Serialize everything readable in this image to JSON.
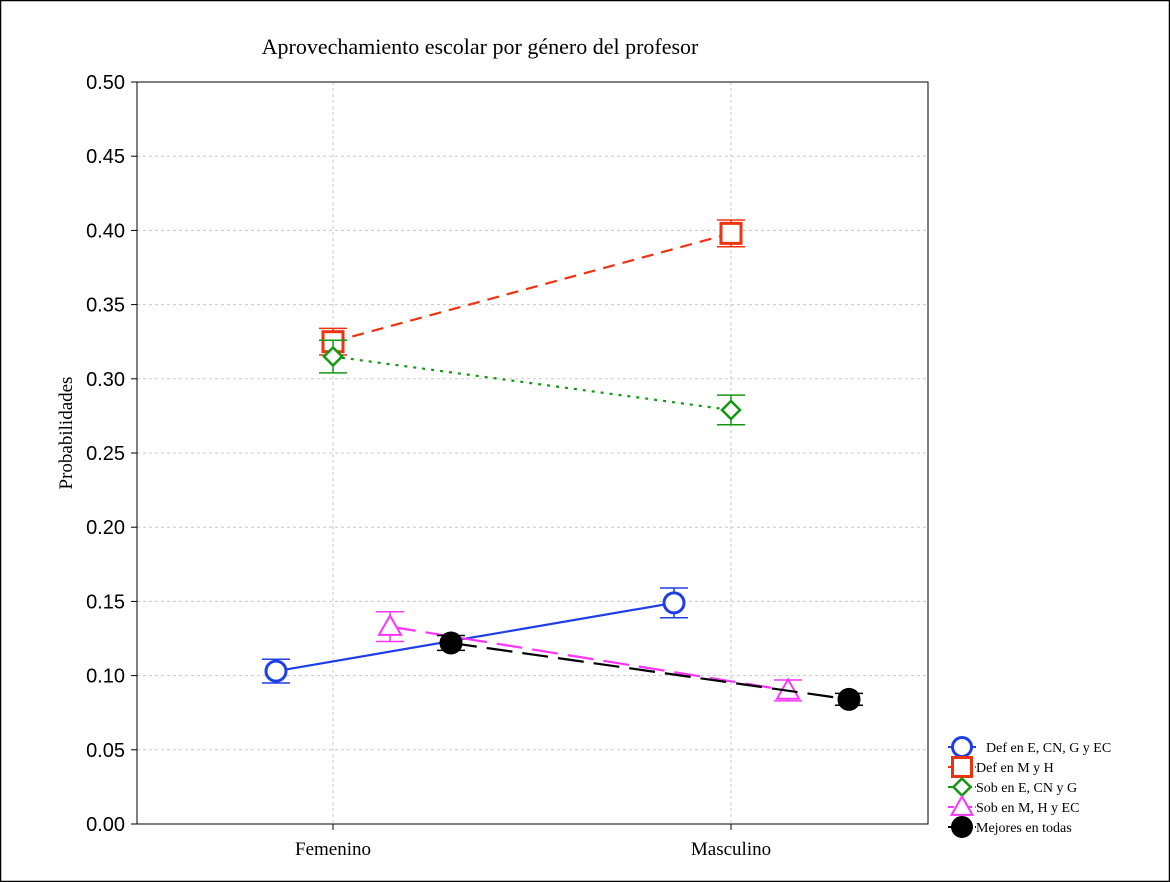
{
  "chart_data": {
    "type": "line",
    "title": "Aprovechamiento escolar por género del profesor",
    "xlabel": "",
    "ylabel": "Probabilidades",
    "categories": [
      "Femenino",
      "Masculino"
    ],
    "ylim": [
      0.0,
      0.5
    ],
    "yticks": [
      "0.00",
      "0.05",
      "0.10",
      "0.15",
      "0.20",
      "0.25",
      "0.30",
      "0.35",
      "0.40",
      "0.45",
      "0.50"
    ],
    "grid": true,
    "legend_position": "bottom-right",
    "series": [
      {
        "name": "Def en E, CN, G y EC",
        "values": [
          0.103,
          0.149
        ],
        "errors": [
          0.008,
          0.01
        ],
        "color": "#1f3fe6",
        "marker": "circle",
        "dash": "solid"
      },
      {
        "name": "Def en M y H",
        "values": [
          0.325,
          0.398
        ],
        "errors": [
          0.009,
          0.009
        ],
        "color": "#ee3311",
        "marker": "square",
        "dash": "dashed"
      },
      {
        "name": "Sob en E, CN y G",
        "values": [
          0.315,
          0.279
        ],
        "errors": [
          0.011,
          0.01
        ],
        "color": "#119911",
        "marker": "diamond",
        "dash": "dotted"
      },
      {
        "name": "Sob en M, H y EC",
        "values": [
          0.133,
          0.09
        ],
        "errors": [
          0.01,
          0.007
        ],
        "color": "#ff33ff",
        "marker": "triangle",
        "dash": "longdash"
      },
      {
        "name": "Mejores en todas",
        "values": [
          0.122,
          0.084
        ],
        "errors": [
          0.005,
          0.004
        ],
        "color": "#000000",
        "marker": "filled-circle",
        "dash": "longdash"
      }
    ]
  }
}
